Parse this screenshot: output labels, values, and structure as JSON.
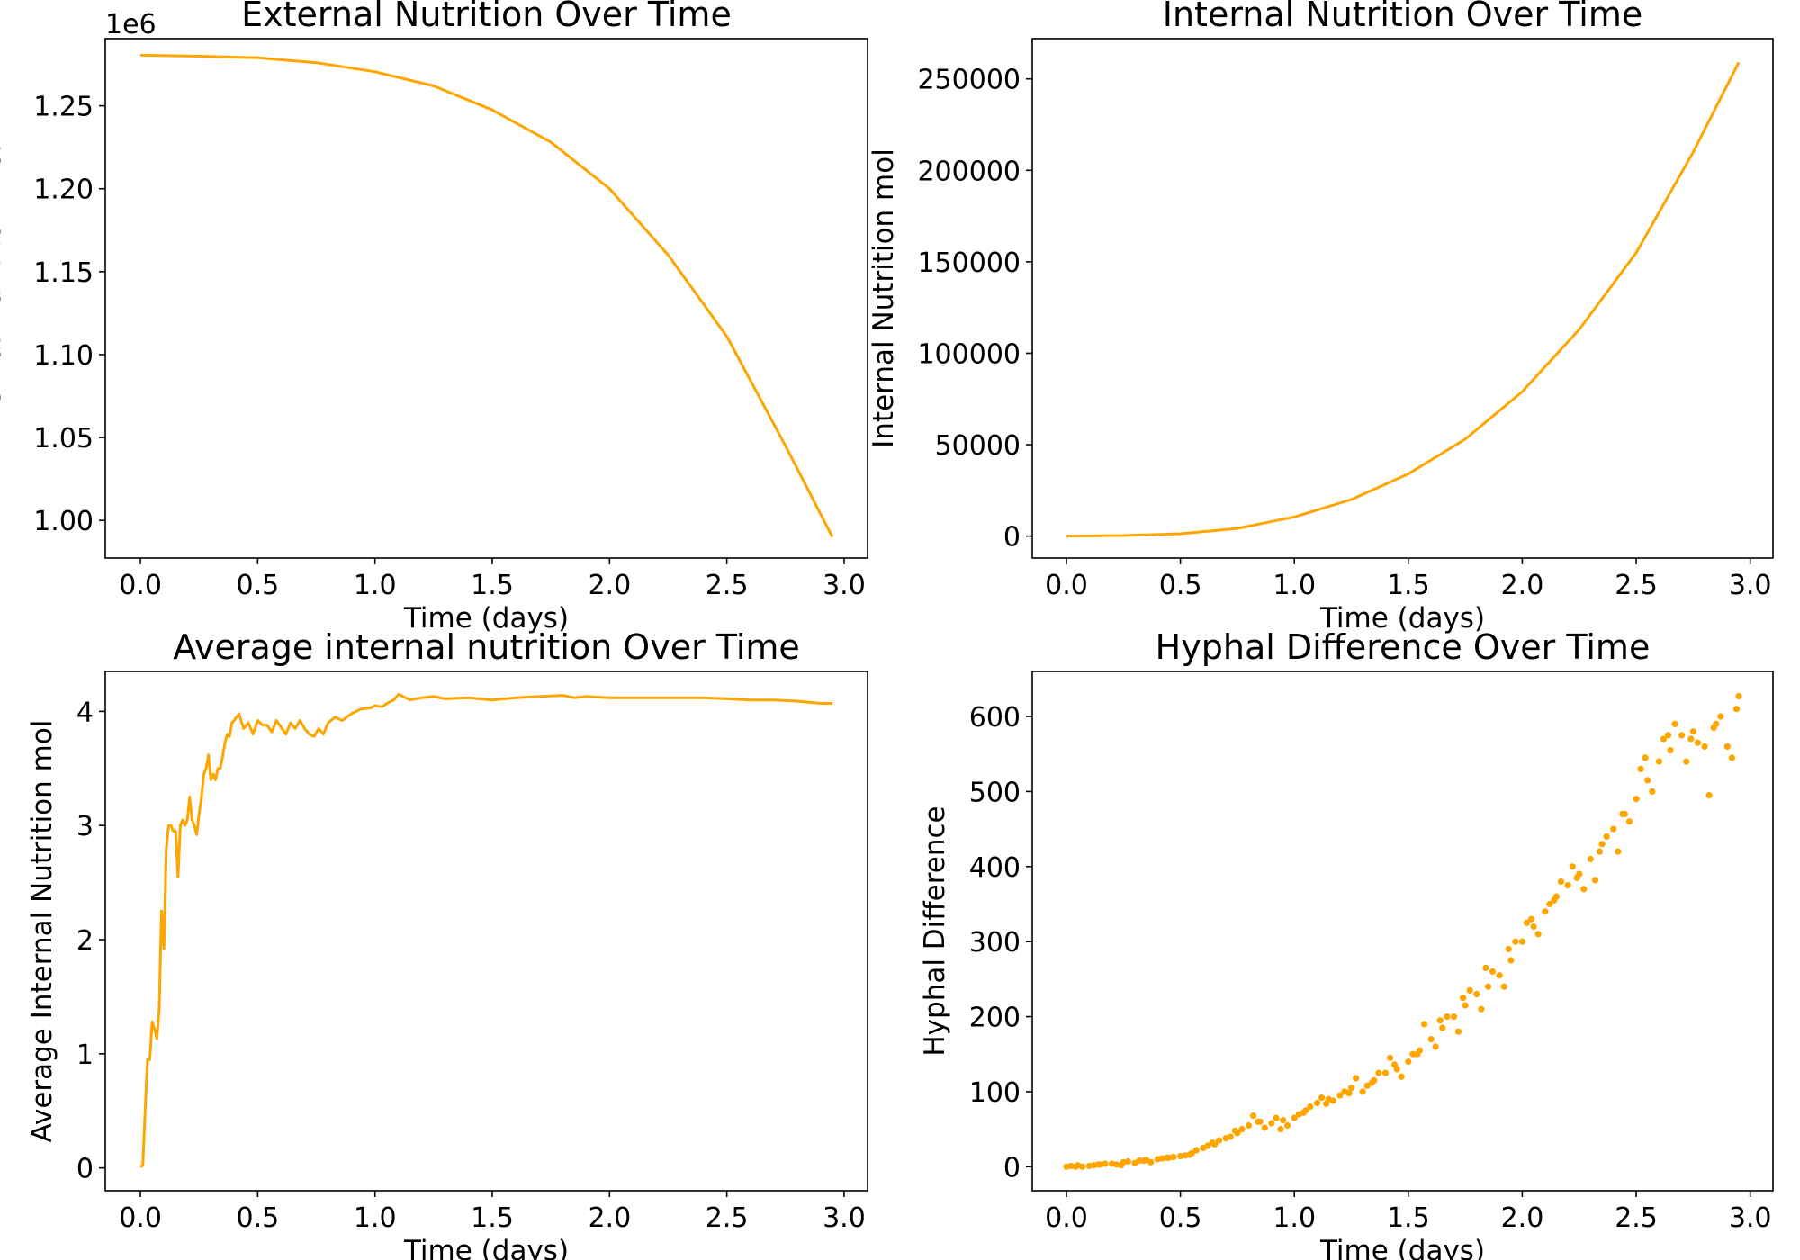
{
  "series_color": "#FFA500",
  "chart_data": [
    {
      "type": "line",
      "title": "External Nutrition Over Time",
      "xlabel": "Time (days)",
      "ylabel": "External Nutrition mol",
      "offset_text": "1e6",
      "xlim": [
        -0.15,
        3.1
      ],
      "ylim": [
        0.9773,
        1.2905
      ],
      "xticks": [
        0.0,
        0.5,
        1.0,
        1.5,
        2.0,
        2.5,
        3.0
      ],
      "xtick_labels": [
        "0.0",
        "0.5",
        "1.0",
        "1.5",
        "2.0",
        "2.5",
        "3.0"
      ],
      "yticks": [
        1.0,
        1.05,
        1.1,
        1.15,
        1.2,
        1.25
      ],
      "ytick_labels": [
        "1.00",
        "1.05",
        "1.10",
        "1.15",
        "1.20",
        "1.25"
      ],
      "grid": false,
      "x": [
        0.0,
        0.25,
        0.5,
        0.75,
        1.0,
        1.25,
        1.5,
        1.75,
        2.0,
        2.25,
        2.5,
        2.75,
        2.95
      ],
      "y": [
        1.2805,
        1.2799,
        1.279,
        1.276,
        1.2705,
        1.262,
        1.2475,
        1.228,
        1.2,
        1.16,
        1.111,
        1.045,
        0.99
      ]
    },
    {
      "type": "line",
      "title": "Internal Nutrition Over Time",
      "xlabel": "Time (days)",
      "ylabel": "Internal Nutrition mol",
      "xlim": [
        -0.15,
        3.1
      ],
      "ylim": [
        -12000,
        272000
      ],
      "xticks": [
        0.0,
        0.5,
        1.0,
        1.5,
        2.0,
        2.5,
        3.0
      ],
      "xtick_labels": [
        "0.0",
        "0.5",
        "1.0",
        "1.5",
        "2.0",
        "2.5",
        "3.0"
      ],
      "yticks": [
        0,
        50000,
        100000,
        150000,
        200000,
        250000
      ],
      "ytick_labels": [
        "0",
        "50000",
        "100000",
        "150000",
        "200000",
        "250000"
      ],
      "grid": false,
      "x": [
        0.0,
        0.25,
        0.5,
        0.75,
        1.0,
        1.25,
        1.5,
        1.75,
        2.0,
        2.25,
        2.5,
        2.75,
        2.95
      ],
      "y": [
        0,
        300,
        1300,
        4200,
        10500,
        20000,
        34000,
        53000,
        79000,
        113000,
        155000,
        210000,
        259000
      ]
    },
    {
      "type": "line",
      "title": "Average internal nutrition Over Time",
      "xlabel": "Time (days)",
      "ylabel": "Average Internal Nutrition mol",
      "xlim": [
        -0.15,
        3.1
      ],
      "ylim": [
        -0.2,
        4.35
      ],
      "xticks": [
        0.0,
        0.5,
        1.0,
        1.5,
        2.0,
        2.5,
        3.0
      ],
      "xtick_labels": [
        "0.0",
        "0.5",
        "1.0",
        "1.5",
        "2.0",
        "2.5",
        "3.0"
      ],
      "yticks": [
        0,
        1,
        2,
        3,
        4
      ],
      "ytick_labels": [
        "0",
        "1",
        "2",
        "3",
        "4"
      ],
      "grid": false,
      "x": [
        0.0,
        0.01,
        0.02,
        0.03,
        0.04,
        0.05,
        0.06,
        0.07,
        0.08,
        0.09,
        0.1,
        0.11,
        0.12,
        0.13,
        0.14,
        0.15,
        0.16,
        0.17,
        0.18,
        0.19,
        0.2,
        0.21,
        0.22,
        0.23,
        0.24,
        0.25,
        0.26,
        0.27,
        0.28,
        0.29,
        0.3,
        0.31,
        0.32,
        0.33,
        0.34,
        0.35,
        0.36,
        0.37,
        0.38,
        0.39,
        0.4,
        0.42,
        0.44,
        0.46,
        0.48,
        0.5,
        0.52,
        0.54,
        0.56,
        0.58,
        0.6,
        0.62,
        0.64,
        0.66,
        0.68,
        0.7,
        0.72,
        0.74,
        0.76,
        0.78,
        0.8,
        0.83,
        0.86,
        0.9,
        0.94,
        0.98,
        1.0,
        1.03,
        1.06,
        1.08,
        1.1,
        1.15,
        1.2,
        1.25,
        1.3,
        1.4,
        1.5,
        1.6,
        1.7,
        1.8,
        1.85,
        1.9,
        2.0,
        2.1,
        2.2,
        2.3,
        2.4,
        2.5,
        2.6,
        2.7,
        2.8,
        2.9,
        2.95
      ],
      "y": [
        0.01,
        0.02,
        0.5,
        0.95,
        0.95,
        1.28,
        1.22,
        1.13,
        1.38,
        2.25,
        1.92,
        2.8,
        3.0,
        3.0,
        2.95,
        2.95,
        2.55,
        3.0,
        3.05,
        3.0,
        3.05,
        3.25,
        3.05,
        3.0,
        2.92,
        3.1,
        3.25,
        3.45,
        3.5,
        3.62,
        3.4,
        3.45,
        3.4,
        3.5,
        3.5,
        3.6,
        3.72,
        3.8,
        3.78,
        3.9,
        3.92,
        3.98,
        3.85,
        3.9,
        3.8,
        3.92,
        3.88,
        3.88,
        3.82,
        3.92,
        3.86,
        3.8,
        3.9,
        3.85,
        3.92,
        3.85,
        3.8,
        3.78,
        3.85,
        3.8,
        3.9,
        3.95,
        3.92,
        3.98,
        4.02,
        4.03,
        4.05,
        4.04,
        4.08,
        4.1,
        4.15,
        4.1,
        4.12,
        4.13,
        4.11,
        4.12,
        4.1,
        4.12,
        4.13,
        4.14,
        4.12,
        4.13,
        4.12,
        4.12,
        4.12,
        4.12,
        4.12,
        4.11,
        4.1,
        4.1,
        4.09,
        4.07,
        4.07
      ]
    },
    {
      "type": "scatter",
      "title": "Hyphal Difference Over Time",
      "xlabel": "Time (days)",
      "ylabel": "Hyphal Difference",
      "xlim": [
        -0.15,
        3.1
      ],
      "ylim": [
        -32,
        660
      ],
      "xticks": [
        0.0,
        0.5,
        1.0,
        1.5,
        2.0,
        2.5,
        3.0
      ],
      "xtick_labels": [
        "0.0",
        "0.5",
        "1.0",
        "1.5",
        "2.0",
        "2.5",
        "3.0"
      ],
      "yticks": [
        0,
        100,
        200,
        300,
        400,
        500,
        600
      ],
      "ytick_labels": [
        "0",
        "100",
        "200",
        "300",
        "400",
        "500",
        "600"
      ],
      "grid": false,
      "x": [
        0.0,
        0.05,
        0.1,
        0.15,
        0.2,
        0.25,
        0.3,
        0.35,
        0.4,
        0.45,
        0.5,
        0.55,
        0.6,
        0.65,
        0.7,
        0.75,
        0.8,
        0.85,
        0.9,
        0.95,
        1.0,
        1.05,
        1.1,
        1.15,
        1.2,
        1.25,
        1.3,
        1.35,
        1.4,
        1.45,
        1.5,
        1.55,
        1.6,
        1.65,
        1.7,
        1.75,
        1.8,
        1.85,
        1.9,
        1.95,
        2.0,
        2.05,
        2.1,
        2.15,
        2.2,
        2.25,
        2.3,
        2.35,
        2.4,
        2.45,
        2.5,
        2.55,
        2.6,
        2.65,
        2.7,
        2.75,
        2.8,
        2.85,
        2.9,
        2.95,
        0.02,
        0.07,
        0.12,
        0.17,
        0.22,
        0.27,
        0.32,
        0.37,
        0.42,
        0.47,
        0.52,
        0.57,
        0.62,
        0.67,
        0.72,
        0.77,
        0.82,
        0.87,
        0.92,
        0.97,
        1.02,
        1.07,
        1.12,
        1.17,
        1.22,
        1.27,
        1.32,
        1.37,
        1.42,
        1.47,
        1.52,
        1.57,
        1.62,
        1.67,
        1.72,
        1.77,
        1.82,
        1.87,
        1.92,
        1.97,
        2.02,
        2.07,
        2.12,
        2.17,
        2.22,
        2.27,
        2.32,
        2.37,
        2.42,
        2.47,
        2.52,
        2.57,
        2.62,
        2.67,
        2.72,
        2.77,
        2.82,
        2.87,
        2.92,
        0.04,
        0.14,
        0.24,
        0.34,
        0.44,
        0.54,
        0.64,
        0.74,
        0.84,
        0.94,
        1.04,
        1.14,
        1.24,
        1.34,
        1.44,
        1.54,
        1.64,
        1.74,
        1.84,
        1.94,
        2.04,
        2.14,
        2.24,
        2.34,
        2.44,
        2.54,
        2.64,
        2.74,
        2.84,
        2.94
      ],
      "y": [
        0,
        2,
        1,
        3,
        4,
        6,
        5,
        9,
        10,
        12,
        14,
        18,
        25,
        30,
        38,
        45,
        55,
        60,
        58,
        62,
        65,
        75,
        85,
        90,
        95,
        105,
        100,
        115,
        125,
        130,
        140,
        155,
        170,
        185,
        200,
        215,
        230,
        240,
        255,
        275,
        300,
        320,
        340,
        360,
        375,
        390,
        410,
        430,
        450,
        470,
        490,
        515,
        540,
        555,
        575,
        580,
        560,
        590,
        560,
        627,
        1,
        0,
        2,
        4,
        3,
        7,
        8,
        6,
        11,
        13,
        15,
        22,
        28,
        35,
        40,
        50,
        68,
        52,
        65,
        55,
        70,
        80,
        92,
        88,
        100,
        118,
        108,
        125,
        145,
        120,
        150,
        190,
        160,
        200,
        180,
        235,
        210,
        260,
        240,
        300,
        325,
        310,
        350,
        380,
        400,
        370,
        382,
        440,
        420,
        460,
        530,
        500,
        570,
        590,
        540,
        565,
        495,
        600,
        545,
        0,
        3,
        2,
        8,
        12,
        16,
        32,
        48,
        60,
        50,
        72,
        84,
        98,
        112,
        136,
        150,
        195,
        225,
        265,
        290,
        330,
        355,
        385,
        420,
        470,
        545,
        575,
        570,
        585,
        610
      ]
    }
  ]
}
